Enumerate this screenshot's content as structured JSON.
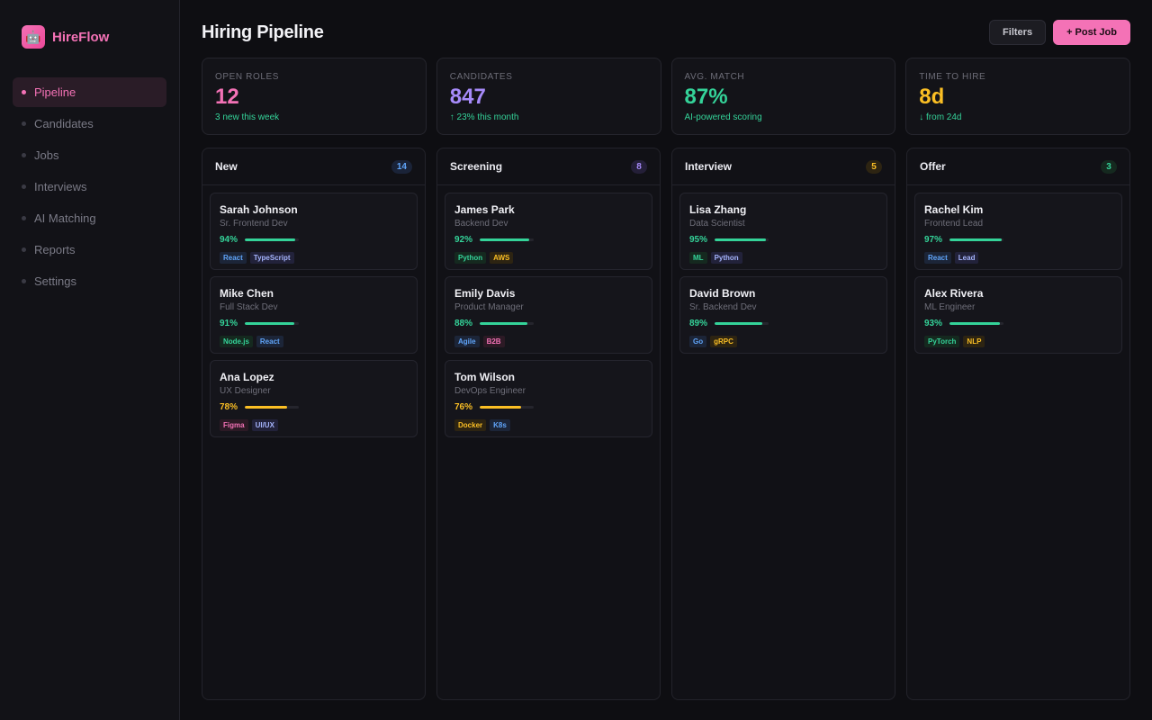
{
  "brand": {
    "name": "HireFlow",
    "icon": "robot-icon"
  },
  "nav": [
    {
      "label": "Pipeline",
      "active": true
    },
    {
      "label": "Candidates",
      "active": false
    },
    {
      "label": "Jobs",
      "active": false
    },
    {
      "label": "Interviews",
      "active": false
    },
    {
      "label": "AI Matching",
      "active": false
    },
    {
      "label": "Reports",
      "active": false
    },
    {
      "label": "Settings",
      "active": false
    }
  ],
  "header": {
    "title": "Hiring Pipeline",
    "filters_label": "Filters",
    "post_job_label": "+ Post Job"
  },
  "stats": [
    {
      "label": "Open Roles",
      "value": "12",
      "sub": "3 new this week",
      "color": "#f472b6",
      "sub_color": "#34d399"
    },
    {
      "label": "Candidates",
      "value": "847",
      "sub": "↑ 23% this month",
      "color": "#a78bfa",
      "sub_color": "#34d399"
    },
    {
      "label": "Avg. Match",
      "value": "87%",
      "sub": "AI-powered scoring",
      "color": "#34d399",
      "sub_color": "#34d399"
    },
    {
      "label": "Time to Hire",
      "value": "8d",
      "sub": "↓ from 24d",
      "color": "#fbbf24",
      "sub_color": "#34d399"
    }
  ],
  "columns": [
    {
      "title": "New",
      "count": "14",
      "count_color": "#60a5fa",
      "count_bg": "#1a2338",
      "cards": [
        {
          "name": "Sarah Johnson",
          "role": "Sr. Frontend Dev",
          "match": "94%",
          "fill": 0.94,
          "color": "#34d399",
          "tags": [
            {
              "label": "React",
              "color": "#60a5fa",
              "bg": "#1c2538"
            },
            {
              "label": "TypeScript",
              "color": "#a5b4fc",
              "bg": "#22223a"
            }
          ]
        },
        {
          "name": "Mike Chen",
          "role": "Full Stack Dev",
          "match": "91%",
          "fill": 0.91,
          "color": "#34d399",
          "tags": [
            {
              "label": "Node.js",
              "color": "#34d399",
              "bg": "#15291f"
            },
            {
              "label": "React",
              "color": "#60a5fa",
              "bg": "#1c2538"
            }
          ]
        },
        {
          "name": "Ana Lopez",
          "role": "UX Designer",
          "match": "78%",
          "fill": 0.78,
          "color": "#fbbf24",
          "tags": [
            {
              "label": "Figma",
              "color": "#f472b6",
              "bg": "#2c1a25"
            },
            {
              "label": "UI/UX",
              "color": "#a5b4fc",
              "bg": "#22223a"
            }
          ]
        }
      ]
    },
    {
      "title": "Screening",
      "count": "8",
      "count_color": "#a78bfa",
      "count_bg": "#241f38",
      "cards": [
        {
          "name": "James Park",
          "role": "Backend Dev",
          "match": "92%",
          "fill": 0.92,
          "color": "#34d399",
          "tags": [
            {
              "label": "Python",
              "color": "#34d399",
              "bg": "#15291f"
            },
            {
              "label": "AWS",
              "color": "#fbbf24",
              "bg": "#2d2412"
            }
          ]
        },
        {
          "name": "Emily Davis",
          "role": "Product Manager",
          "match": "88%",
          "fill": 0.88,
          "color": "#34d399",
          "tags": [
            {
              "label": "Agile",
              "color": "#60a5fa",
              "bg": "#1c2538"
            },
            {
              "label": "B2B",
              "color": "#f472b6",
              "bg": "#2c1a25"
            }
          ]
        },
        {
          "name": "Tom Wilson",
          "role": "DevOps Engineer",
          "match": "76%",
          "fill": 0.76,
          "color": "#fbbf24",
          "tags": [
            {
              "label": "Docker",
              "color": "#fbbf24",
              "bg": "#2d2412"
            },
            {
              "label": "K8s",
              "color": "#60a5fa",
              "bg": "#1c2538"
            }
          ]
        }
      ]
    },
    {
      "title": "Interview",
      "count": "5",
      "count_color": "#fbbf24",
      "count_bg": "#2d2412",
      "cards": [
        {
          "name": "Lisa Zhang",
          "role": "Data Scientist",
          "match": "95%",
          "fill": 0.95,
          "color": "#34d399",
          "tags": [
            {
              "label": "ML",
              "color": "#34d399",
              "bg": "#15291f"
            },
            {
              "label": "Python",
              "color": "#a5b4fc",
              "bg": "#22223a"
            }
          ]
        },
        {
          "name": "David Brown",
          "role": "Sr. Backend Dev",
          "match": "89%",
          "fill": 0.89,
          "color": "#34d399",
          "tags": [
            {
              "label": "Go",
              "color": "#60a5fa",
              "bg": "#1c2538"
            },
            {
              "label": "gRPC",
              "color": "#fbbf24",
              "bg": "#2d2412"
            }
          ]
        }
      ]
    },
    {
      "title": "Offer",
      "count": "3",
      "count_color": "#34d399",
      "count_bg": "#15291f",
      "cards": [
        {
          "name": "Rachel Kim",
          "role": "Frontend Lead",
          "match": "97%",
          "fill": 0.97,
          "color": "#34d399",
          "tags": [
            {
              "label": "React",
              "color": "#60a5fa",
              "bg": "#1c2538"
            },
            {
              "label": "Lead",
              "color": "#a5b4fc",
              "bg": "#22223a"
            }
          ]
        },
        {
          "name": "Alex Rivera",
          "role": "ML Engineer",
          "match": "93%",
          "fill": 0.93,
          "color": "#34d399",
          "tags": [
            {
              "label": "PyTorch",
              "color": "#34d399",
              "bg": "#15291f"
            },
            {
              "label": "NLP",
              "color": "#fbbf24",
              "bg": "#2d2412"
            }
          ]
        }
      ]
    }
  ]
}
